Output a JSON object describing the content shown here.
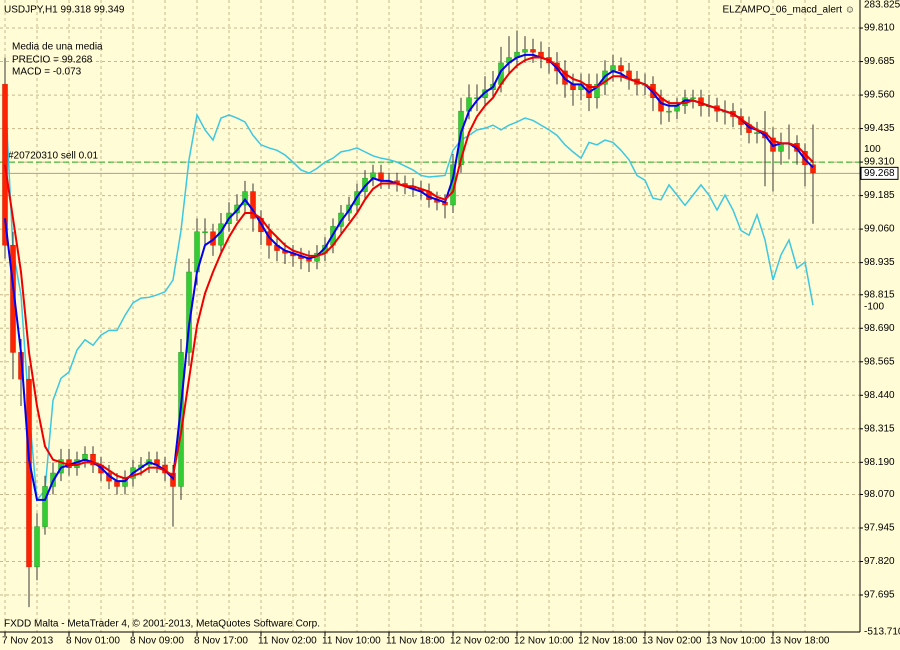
{
  "chart_data": {
    "type": "candlestick",
    "title": "USDJPY,H1 99.318 99.349",
    "indicator_name": "ELZAMPO_06_macd_alert ☺",
    "annotations": [
      "Media de una media",
      "PRECIO =  99.268",
      "MACD =  -0.073"
    ],
    "footer": "FXDD Malta - MetaTrader 4, © 2001-2013, MetaQuotes Software Corp.",
    "order_line": {
      "name": "#20720310 sell 0.01",
      "value": 99.31,
      "color": "#22aa22"
    },
    "bid": {
      "value": 99.268,
      "label": "99.268",
      "color": "#a0a0a8"
    },
    "bull_color": "#33cc33",
    "bear_color": "#ff2200",
    "wick_color": "#3a3a3a",
    "grid": true,
    "categories": [
      "7 Nov 2013",
      null,
      null,
      null,
      null,
      null,
      null,
      null,
      "8 Nov 01:00",
      null,
      null,
      null,
      null,
      null,
      null,
      null,
      "8 Nov 09:00",
      null,
      null,
      null,
      null,
      null,
      null,
      null,
      "8 Nov 17:00",
      null,
      null,
      null,
      null,
      null,
      null,
      null,
      "11 Nov 02:00",
      null,
      null,
      null,
      null,
      null,
      null,
      null,
      "11 Nov 10:00",
      null,
      null,
      null,
      null,
      null,
      null,
      null,
      "11 Nov 18:00",
      null,
      null,
      null,
      null,
      null,
      null,
      null,
      "12 Nov 02:00",
      null,
      null,
      null,
      null,
      null,
      null,
      null,
      "12 Nov 10:00",
      null,
      null,
      null,
      null,
      null,
      null,
      null,
      "12 Nov 18:00",
      null,
      null,
      null,
      null,
      null,
      null,
      null,
      "13 Nov 02:00",
      null,
      null,
      null,
      null,
      null,
      null,
      null,
      "13 Nov 10:00",
      null,
      null,
      null,
      null,
      null,
      null,
      null,
      "13 Nov 18:00",
      null,
      null,
      null,
      null,
      null
    ],
    "open": [
      99.6,
      99.0,
      98.6,
      98.5,
      97.8,
      97.95,
      98.1,
      98.15,
      98.2,
      98.17,
      98.2,
      98.22,
      98.18,
      98.15,
      98.12,
      98.1,
      98.13,
      98.17,
      98.18,
      98.2,
      98.18,
      98.15,
      98.1,
      98.6,
      98.9,
      99.05,
      99.05,
      99.0,
      99.08,
      99.12,
      99.15,
      99.2,
      99.1,
      99.05,
      99.0,
      98.98,
      98.97,
      98.96,
      98.95,
      98.94,
      98.97,
      99.0,
      99.07,
      99.12,
      99.15,
      99.2,
      99.25,
      99.27,
      99.24,
      99.24,
      99.23,
      99.22,
      99.21,
      99.2,
      99.17,
      99.16,
      99.15,
      99.3,
      99.5,
      99.55,
      99.55,
      99.58,
      99.6,
      99.68,
      99.7,
      99.72,
      99.73,
      99.72,
      99.7,
      99.68,
      99.65,
      99.6,
      99.58,
      99.6,
      99.55,
      99.6,
      99.65,
      99.67,
      99.65,
      99.62,
      99.6,
      99.6,
      99.55,
      99.5,
      99.5,
      99.52,
      99.55,
      99.55,
      99.52,
      99.52,
      99.5,
      99.5,
      99.48,
      99.45,
      99.42,
      99.42,
      99.4,
      99.35,
      99.38,
      99.38,
      99.35,
      99.3
    ],
    "high": [
      99.7,
      99.05,
      98.65,
      98.55,
      98.0,
      98.14,
      98.19,
      98.24,
      98.24,
      98.23,
      98.25,
      98.25,
      98.21,
      98.18,
      98.15,
      98.16,
      98.2,
      98.21,
      98.23,
      98.23,
      98.21,
      98.18,
      98.65,
      98.95,
      99.1,
      99.1,
      99.08,
      99.12,
      99.16,
      99.19,
      99.24,
      99.23,
      99.13,
      99.08,
      99.03,
      99.01,
      99.0,
      98.99,
      98.98,
      99.0,
      99.03,
      99.1,
      99.15,
      99.18,
      99.23,
      99.28,
      99.3,
      99.3,
      99.27,
      99.27,
      99.26,
      99.25,
      99.24,
      99.23,
      99.2,
      99.19,
      99.34,
      99.55,
      99.6,
      99.6,
      99.63,
      99.65,
      99.74,
      99.78,
      99.8,
      99.78,
      99.77,
      99.76,
      99.74,
      99.72,
      99.69,
      99.64,
      99.64,
      99.64,
      99.64,
      99.69,
      99.71,
      99.7,
      99.68,
      99.65,
      99.64,
      99.63,
      99.58,
      99.54,
      99.55,
      99.58,
      99.58,
      99.58,
      99.56,
      99.55,
      99.54,
      99.53,
      99.51,
      99.48,
      99.46,
      99.5,
      99.44,
      99.42,
      99.45,
      99.41,
      99.38,
      99.45
    ],
    "low": [
      98.95,
      98.5,
      98.4,
      97.65,
      97.75,
      97.92,
      98.07,
      98.12,
      98.14,
      98.14,
      98.17,
      98.15,
      98.12,
      98.09,
      98.07,
      98.07,
      98.1,
      98.14,
      98.15,
      98.15,
      98.12,
      97.95,
      98.05,
      98.55,
      98.85,
      99.0,
      98.96,
      98.97,
      99.05,
      99.09,
      99.12,
      99.05,
      99.0,
      98.95,
      98.94,
      98.93,
      98.92,
      98.91,
      98.9,
      98.91,
      98.94,
      98.97,
      99.04,
      99.09,
      99.12,
      99.17,
      99.22,
      99.21,
      99.21,
      99.2,
      99.19,
      99.18,
      99.17,
      99.14,
      99.13,
      99.1,
      99.12,
      99.27,
      99.47,
      99.5,
      99.52,
      99.55,
      99.57,
      99.64,
      99.66,
      99.68,
      99.68,
      99.66,
      99.64,
      99.6,
      99.55,
      99.52,
      99.54,
      99.5,
      99.51,
      99.56,
      99.61,
      99.61,
      99.58,
      99.56,
      99.56,
      99.5,
      99.45,
      99.46,
      99.47,
      99.49,
      99.51,
      99.48,
      99.48,
      99.46,
      99.45,
      99.44,
      99.41,
      99.38,
      99.38,
      99.22,
      99.2,
      99.3,
      99.32,
      99.3,
      99.22,
      99.08
    ],
    "close": [
      99.0,
      98.6,
      98.5,
      97.8,
      97.95,
      98.1,
      98.15,
      98.2,
      98.17,
      98.2,
      98.22,
      98.18,
      98.15,
      98.12,
      98.1,
      98.13,
      98.17,
      98.18,
      98.2,
      98.18,
      98.15,
      98.1,
      98.6,
      98.9,
      99.05,
      99.05,
      99.0,
      99.08,
      99.12,
      99.15,
      99.2,
      99.1,
      99.05,
      99.0,
      98.98,
      98.97,
      98.96,
      98.95,
      98.94,
      98.97,
      99.0,
      99.07,
      99.12,
      99.15,
      99.2,
      99.25,
      99.27,
      99.24,
      99.24,
      99.23,
      99.22,
      99.21,
      99.2,
      99.17,
      99.16,
      99.15,
      99.3,
      99.5,
      99.55,
      99.55,
      99.58,
      99.6,
      99.68,
      99.7,
      99.72,
      99.73,
      99.72,
      99.7,
      99.68,
      99.65,
      99.6,
      99.58,
      99.6,
      99.55,
      99.6,
      99.65,
      99.67,
      99.65,
      99.62,
      99.6,
      99.6,
      99.55,
      99.5,
      99.5,
      99.52,
      99.55,
      99.55,
      99.52,
      99.52,
      99.5,
      99.5,
      99.48,
      99.45,
      99.42,
      99.42,
      99.4,
      99.35,
      99.38,
      99.38,
      99.35,
      99.3,
      99.27
    ],
    "ma_lines": [
      {
        "color": "#0000ee",
        "values": [
          99.1,
          98.85,
          98.6,
          98.2,
          98.05,
          98.05,
          98.12,
          98.17,
          98.18,
          98.19,
          98.2,
          98.19,
          98.17,
          98.14,
          98.12,
          98.12,
          98.15,
          98.17,
          98.19,
          98.18,
          98.16,
          98.13,
          98.4,
          98.7,
          98.9,
          99.0,
          99.02,
          99.05,
          99.1,
          99.13,
          99.17,
          99.13,
          99.08,
          99.03,
          99.0,
          98.98,
          98.97,
          98.96,
          98.95,
          98.96,
          98.99,
          99.04,
          99.09,
          99.13,
          99.18,
          99.22,
          99.25,
          99.24,
          99.24,
          99.23,
          99.22,
          99.21,
          99.2,
          99.18,
          99.17,
          99.16,
          99.25,
          99.42,
          99.5,
          99.54,
          99.57,
          99.59,
          99.65,
          99.68,
          99.7,
          99.71,
          99.71,
          99.7,
          99.69,
          99.66,
          99.62,
          99.6,
          99.6,
          99.57,
          99.59,
          99.63,
          99.65,
          99.64,
          99.62,
          99.61,
          99.6,
          99.57,
          99.53,
          99.52,
          99.52,
          99.54,
          99.54,
          99.53,
          99.52,
          99.51,
          99.5,
          99.49,
          99.47,
          99.44,
          99.43,
          99.41,
          99.37,
          99.38,
          99.38,
          99.36,
          99.32,
          99.29
        ]
      },
      {
        "color": "#ee0000",
        "values": [
          99.3,
          99.1,
          98.9,
          98.6,
          98.4,
          98.25,
          98.2,
          98.19,
          98.18,
          98.18,
          98.19,
          98.19,
          98.18,
          98.16,
          98.14,
          98.13,
          98.14,
          98.15,
          98.17,
          98.17,
          98.16,
          98.14,
          98.3,
          98.5,
          98.7,
          98.82,
          98.9,
          98.97,
          99.03,
          99.08,
          99.12,
          99.12,
          99.1,
          99.06,
          99.03,
          99.0,
          98.98,
          98.97,
          98.96,
          98.96,
          98.97,
          99.0,
          99.04,
          99.08,
          99.12,
          99.17,
          99.21,
          99.23,
          99.23,
          99.23,
          99.22,
          99.22,
          99.21,
          99.2,
          99.18,
          99.17,
          99.2,
          99.32,
          99.42,
          99.48,
          99.52,
          99.55,
          99.6,
          99.64,
          99.67,
          99.69,
          99.7,
          99.7,
          99.69,
          99.67,
          99.64,
          99.62,
          99.61,
          99.59,
          99.59,
          99.61,
          99.63,
          99.63,
          99.62,
          99.61,
          99.6,
          99.58,
          99.55,
          99.53,
          99.53,
          99.53,
          99.54,
          99.53,
          99.52,
          99.51,
          99.5,
          99.49,
          99.47,
          99.45,
          99.43,
          99.42,
          99.39,
          99.38,
          99.38,
          99.37,
          99.34,
          99.31
        ]
      }
    ],
    "indicator": {
      "color": "#3cc8e0",
      "axis": "y2",
      "values": [
        176,
        -28,
        -85,
        -232,
        -346,
        -333,
        -219,
        -191,
        -183,
        -155,
        -142,
        -149,
        -136,
        -130,
        -130,
        -111,
        -95,
        -89,
        -88,
        -85,
        -81,
        -66,
        -3,
        87,
        144,
        125,
        112,
        140,
        144,
        140,
        135,
        118,
        106,
        102,
        99,
        93,
        84,
        74,
        70,
        76,
        84,
        89,
        97,
        99,
        102,
        97,
        92,
        89,
        87,
        84,
        79,
        74,
        67,
        65,
        66,
        67,
        99,
        112,
        118,
        125,
        127,
        131,
        125,
        131,
        135,
        140,
        137,
        131,
        125,
        118,
        106,
        97,
        89,
        109,
        106,
        112,
        109,
        99,
        87,
        67,
        61,
        38,
        36,
        55,
        42,
        29,
        42,
        55,
        42,
        23,
        42,
        23,
        -3,
        -9,
        17,
        -15,
        -66,
        -34,
        -15,
        -51,
        -43,
        -98
      ]
    },
    "ylim": [
      97.557,
      99.896
    ],
    "yticks": [
      {
        "value": 99.81,
        "label": "99.810"
      },
      {
        "value": 99.685,
        "label": "99.685"
      },
      {
        "value": 99.56,
        "label": "99.560"
      },
      {
        "value": 99.435,
        "label": "99.435"
      },
      {
        "value": 99.31,
        "label": "99.310"
      },
      {
        "value": 99.185,
        "label": "99.185"
      },
      {
        "value": 99.06,
        "label": "99.060"
      },
      {
        "value": 98.935,
        "label": "98.935"
      },
      {
        "value": 98.815,
        "label": "98.815"
      },
      {
        "value": 98.69,
        "label": "98.690"
      },
      {
        "value": 98.565,
        "label": "98.565"
      },
      {
        "value": 98.44,
        "label": "98.440"
      },
      {
        "value": 98.315,
        "label": "98.315"
      },
      {
        "value": 98.19,
        "label": "98.190"
      },
      {
        "value": 98.07,
        "label": "98.070"
      },
      {
        "value": 97.945,
        "label": "97.945"
      },
      {
        "value": 97.82,
        "label": "97.820"
      },
      {
        "value": 97.695,
        "label": "97.695"
      }
    ],
    "y2lim": [
      -513.71,
      283.825
    ],
    "y2ticks": [
      {
        "value": 283.825,
        "label": "283.825"
      },
      100,
      -100,
      {
        "value": -513.71,
        "label": "-513.710"
      }
    ]
  }
}
